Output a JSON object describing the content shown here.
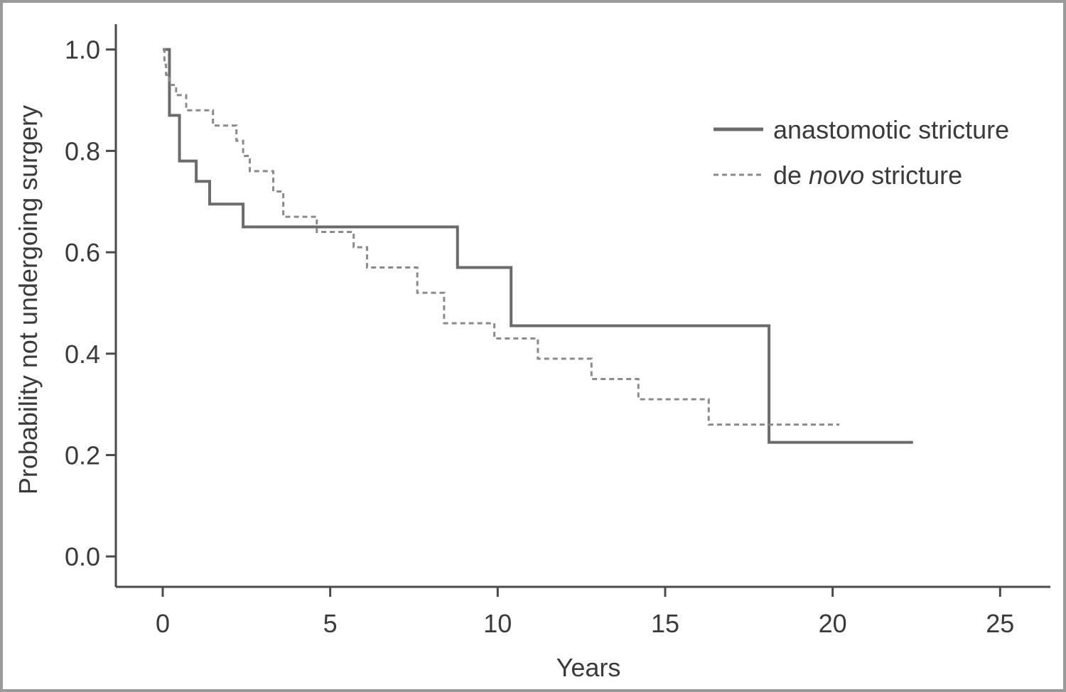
{
  "chart_data": {
    "type": "line",
    "subtype": "kaplan-meier-step",
    "title": "",
    "xlabel": "Years",
    "ylabel": "Probability not undergoing surgery",
    "xlim": [
      -1.4,
      26.5
    ],
    "ylim": [
      -0.06,
      1.05
    ],
    "x_ticks": [
      0,
      5,
      10,
      15,
      20,
      25
    ],
    "y_ticks": [
      0.0,
      0.2,
      0.4,
      0.6,
      0.8,
      1.0
    ],
    "x_tick_labels": [
      "0",
      "5",
      "10",
      "15",
      "20",
      "25"
    ],
    "y_tick_labels": [
      "0.0",
      "0.2",
      "0.4",
      "0.6",
      "0.8",
      "1.0"
    ],
    "grid": false,
    "legend_position": "top-right",
    "series": [
      {
        "name": "anastomotic stricture",
        "style": "solid",
        "color": "#6b6b6b",
        "x": [
          0,
          0.2,
          0.5,
          1.0,
          1.4,
          2.4,
          8.8,
          10.4,
          18.1,
          22.4
        ],
        "y": [
          1.0,
          0.87,
          0.78,
          0.74,
          0.695,
          0.65,
          0.57,
          0.455,
          0.225,
          0.225
        ]
      },
      {
        "name": "de novo stricture",
        "style": "dashed",
        "italic_word": "novo",
        "color": "#8a8a8a",
        "x": [
          0,
          0.05,
          0.1,
          0.2,
          0.4,
          0.7,
          1.5,
          2.2,
          2.4,
          2.6,
          3.3,
          3.6,
          4.6,
          5.7,
          6.1,
          7.6,
          8.4,
          9.9,
          11.2,
          12.8,
          14.2,
          16.3,
          20.2
        ],
        "y": [
          1.0,
          0.97,
          0.95,
          0.93,
          0.91,
          0.88,
          0.85,
          0.82,
          0.79,
          0.76,
          0.72,
          0.67,
          0.64,
          0.61,
          0.57,
          0.52,
          0.46,
          0.43,
          0.39,
          0.35,
          0.31,
          0.26,
          0.26
        ]
      }
    ]
  }
}
